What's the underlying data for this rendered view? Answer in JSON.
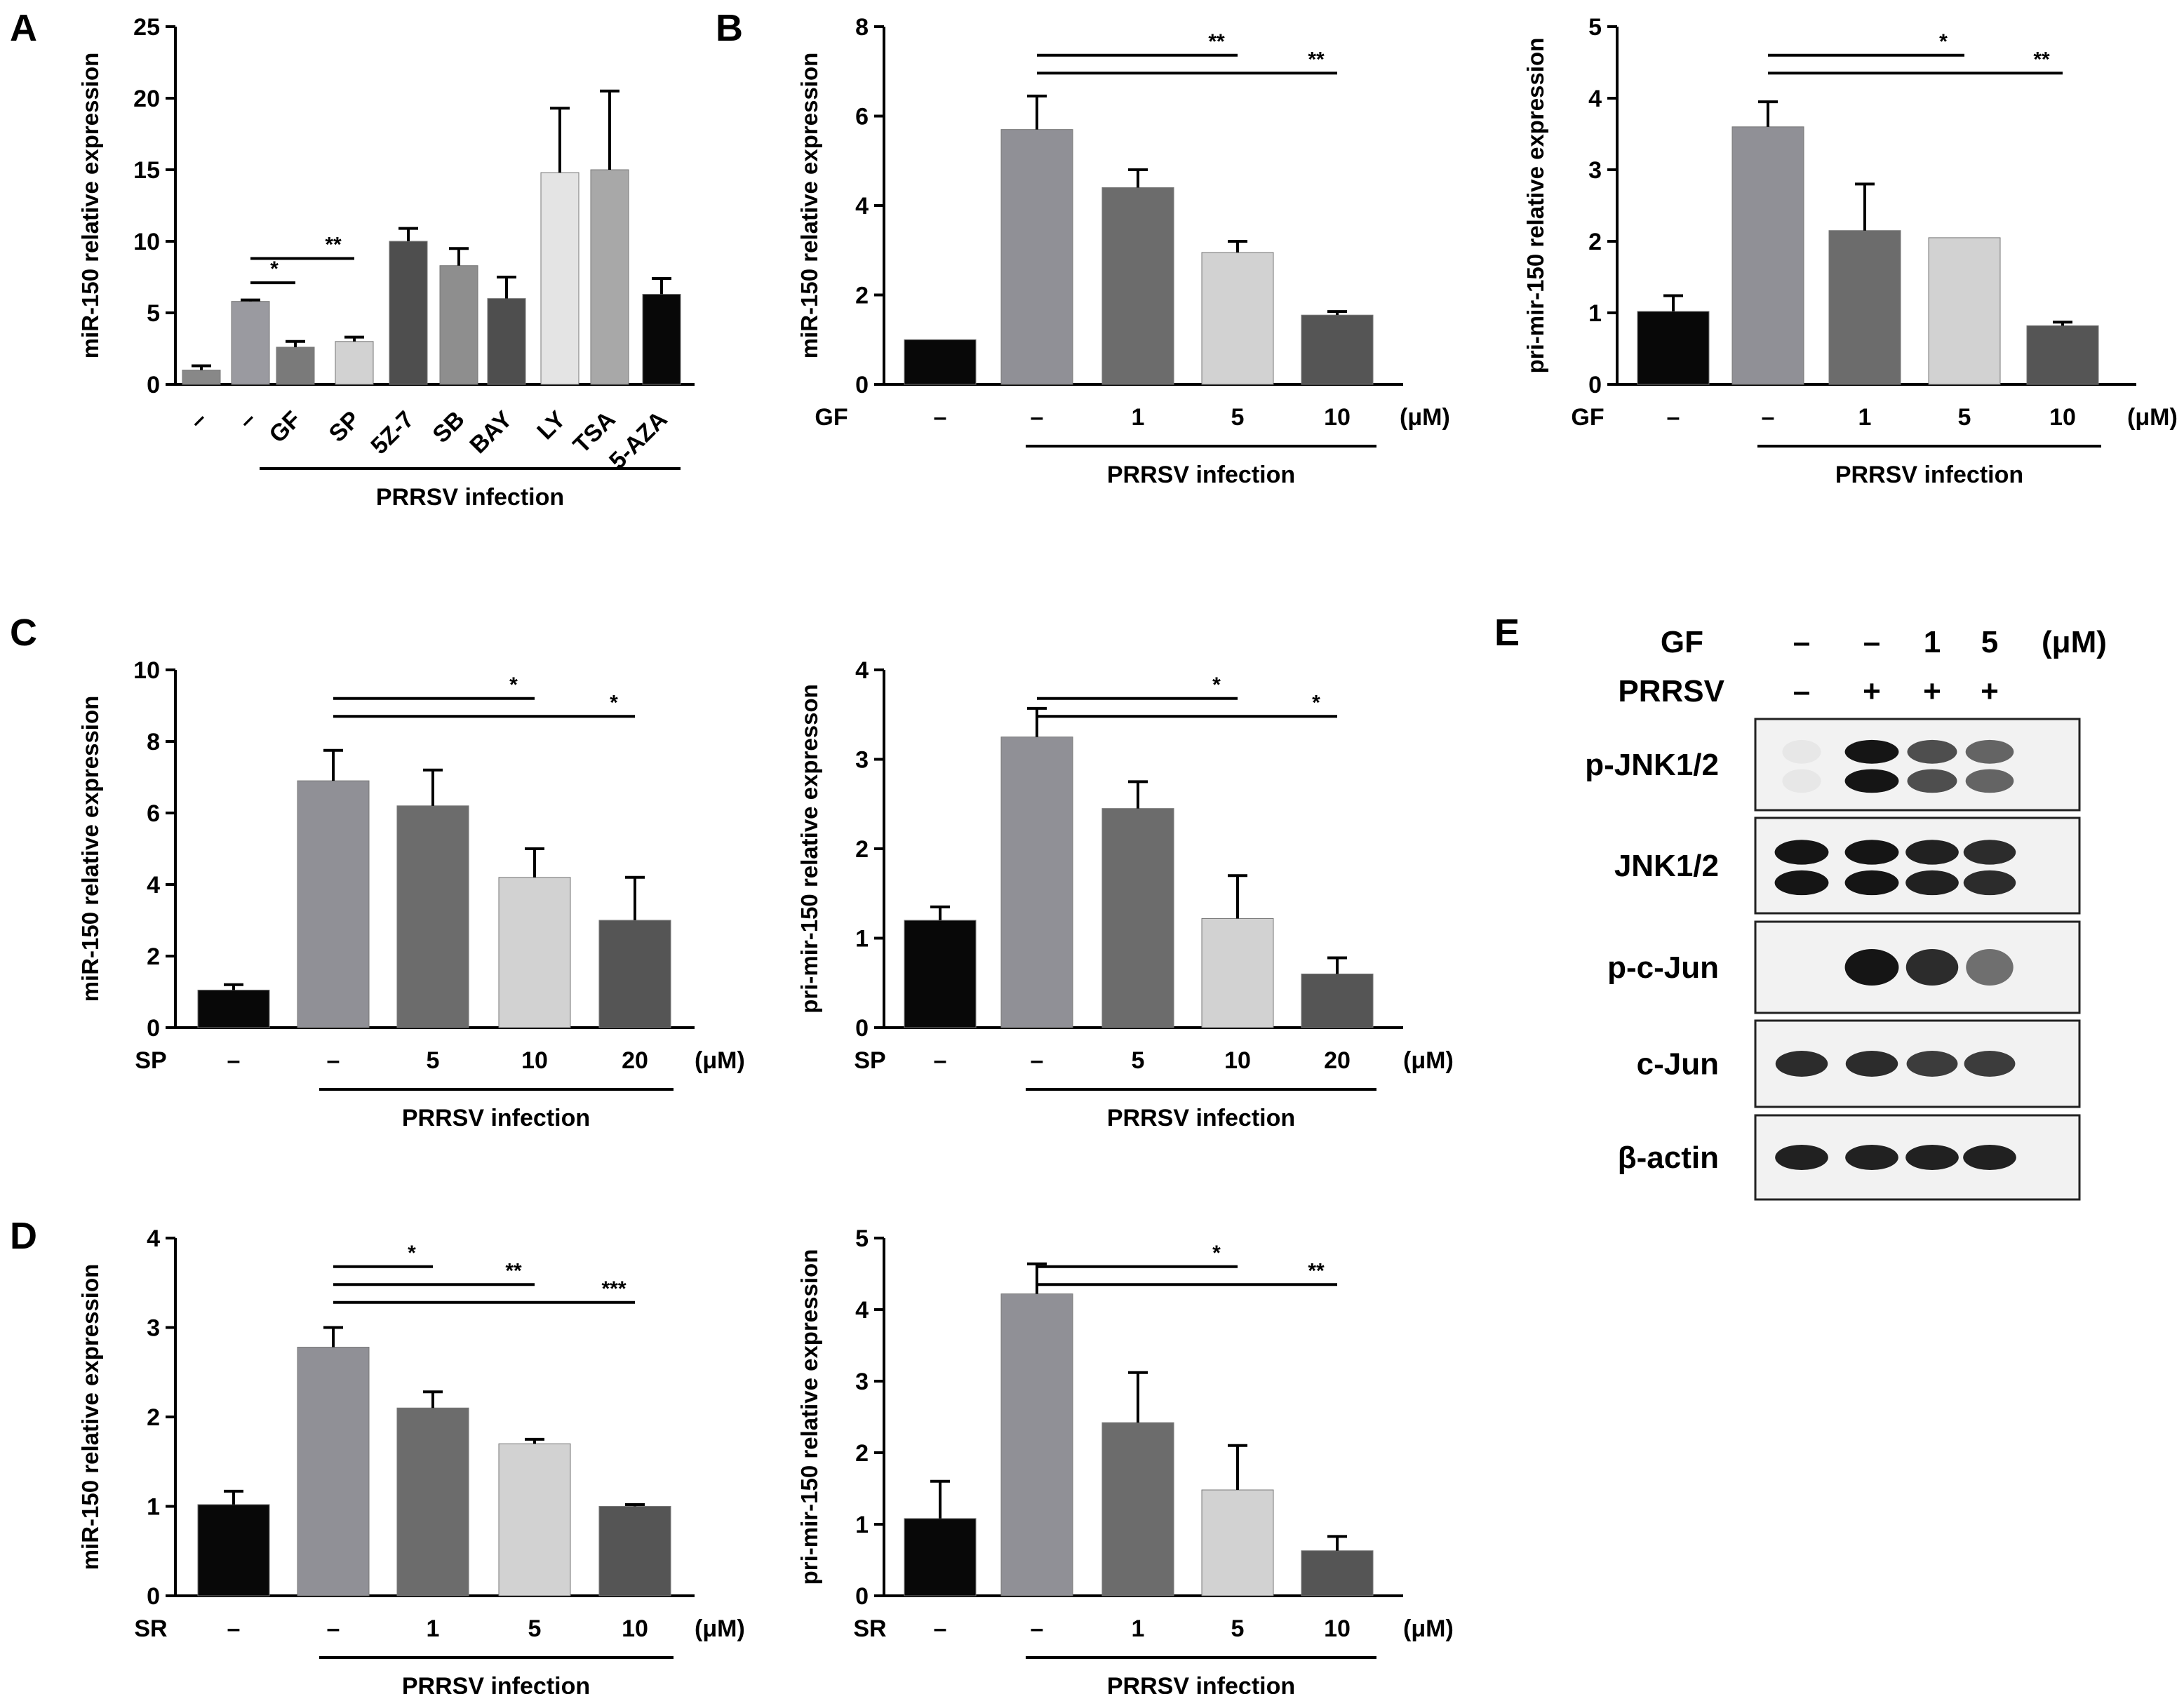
{
  "chart_data": [
    {
      "panel": "A",
      "type": "bar",
      "ylabel": "miR-150 relative expression",
      "ylim": [
        0,
        25
      ],
      "yticks": [
        0,
        5,
        10,
        15,
        20,
        25
      ],
      "categories": [
        "–",
        "–",
        "GF",
        "SP",
        "5Z-7",
        "SB",
        "BAY",
        "LY",
        "TSA",
        "5-AZA"
      ],
      "values": [
        1.0,
        5.8,
        2.6,
        3.0,
        10.0,
        8.3,
        6.0,
        14.8,
        15.0,
        6.3
      ],
      "errors": [
        0.3,
        0.1,
        0.4,
        0.3,
        0.9,
        1.2,
        1.5,
        4.5,
        5.5,
        1.1
      ],
      "colors": [
        "#888888",
        "#9a9aa0",
        "#7a7a7a",
        "#d2d2d2",
        "#4e4e4e",
        "#8e8e8e",
        "#4e4e4e",
        "#e4e4e4",
        "#a8a8a8",
        "#080808"
      ],
      "infection_label": "PRRSV infection",
      "comparisons": [
        {
          "from": 1,
          "to": 2,
          "label": "*"
        },
        {
          "from": 1,
          "to": 3,
          "label": "**"
        }
      ]
    },
    {
      "panel": "B",
      "type": "bar",
      "ylabel": "miR-150 relative expression",
      "ylim": [
        0,
        8
      ],
      "yticks": [
        0,
        2,
        4,
        6,
        8
      ],
      "treatment": "GF",
      "unit": "(μM)",
      "categories": [
        "–",
        "–",
        "1",
        "5",
        "10"
      ],
      "values": [
        1.0,
        5.7,
        4.4,
        2.95,
        1.55
      ],
      "errors": [
        0.0,
        0.75,
        0.4,
        0.25,
        0.08
      ],
      "colors": [
        "#080808",
        "#909096",
        "#6c6c6c",
        "#d2d2d2",
        "#555555"
      ],
      "infection_label": "PRRSV infection",
      "comparisons": [
        {
          "from": 1,
          "to": 3,
          "label": "**"
        },
        {
          "from": 1,
          "to": 4,
          "label": "**"
        }
      ]
    },
    {
      "panel": "B2",
      "type": "bar",
      "ylabel": "pri-mir-150 relative expression",
      "ylim": [
        0,
        5
      ],
      "yticks": [
        0,
        1,
        2,
        3,
        4,
        5
      ],
      "treatment": "GF",
      "unit": "(μM)",
      "categories": [
        "–",
        "–",
        "1",
        "5",
        "10"
      ],
      "values": [
        1.02,
        3.6,
        2.15,
        2.05,
        0.82
      ],
      "errors": [
        0.22,
        0.35,
        0.65,
        0.0,
        0.05
      ],
      "colors": [
        "#080808",
        "#909096",
        "#6c6c6c",
        "#d2d2d2",
        "#555555"
      ],
      "infection_label": "PRRSV infection",
      "comparisons": [
        {
          "from": 1,
          "to": 3,
          "label": "*"
        },
        {
          "from": 1,
          "to": 4,
          "label": "**"
        }
      ]
    },
    {
      "panel": "C",
      "type": "bar",
      "ylabel": "miR-150 relative expression",
      "ylim": [
        0,
        10
      ],
      "yticks": [
        0,
        2,
        4,
        6,
        8,
        10
      ],
      "treatment": "SP",
      "unit": "(μM)",
      "categories": [
        "–",
        "–",
        "5",
        "10",
        "20"
      ],
      "values": [
        1.05,
        6.9,
        6.2,
        4.2,
        3.0
      ],
      "errors": [
        0.15,
        0.85,
        1.0,
        0.8,
        1.2
      ],
      "colors": [
        "#080808",
        "#909096",
        "#6c6c6c",
        "#d2d2d2",
        "#555555"
      ],
      "infection_label": "PRRSV infection",
      "comparisons": [
        {
          "from": 1,
          "to": 3,
          "label": "*"
        },
        {
          "from": 1,
          "to": 4,
          "label": "*"
        }
      ]
    },
    {
      "panel": "C2",
      "type": "bar",
      "ylabel": "pri-mir-150 relative expresson",
      "ylim": [
        0,
        4
      ],
      "yticks": [
        0,
        1,
        2,
        3,
        4
      ],
      "treatment": "SP",
      "unit": "(μM)",
      "categories": [
        "–",
        "–",
        "5",
        "10",
        "20"
      ],
      "values": [
        1.2,
        3.25,
        2.45,
        1.22,
        0.6
      ],
      "errors": [
        0.15,
        0.32,
        0.3,
        0.48,
        0.18
      ],
      "colors": [
        "#080808",
        "#909096",
        "#6c6c6c",
        "#d2d2d2",
        "#555555"
      ],
      "infection_label": "PRRSV infection",
      "comparisons": [
        {
          "from": 1,
          "to": 3,
          "label": "*"
        },
        {
          "from": 1,
          "to": 4,
          "label": "*"
        }
      ]
    },
    {
      "panel": "D",
      "type": "bar",
      "ylabel": "miR-150 relative expression",
      "ylim": [
        0,
        4
      ],
      "yticks": [
        0,
        1,
        2,
        3,
        4
      ],
      "treatment": "SR",
      "unit": "(μM)",
      "categories": [
        "–",
        "–",
        "1",
        "5",
        "10"
      ],
      "values": [
        1.02,
        2.78,
        2.1,
        1.7,
        1.0
      ],
      "errors": [
        0.15,
        0.22,
        0.18,
        0.05,
        0.02
      ],
      "colors": [
        "#080808",
        "#909096",
        "#6c6c6c",
        "#d2d2d2",
        "#555555"
      ],
      "infection_label": "PRRSV infection",
      "comparisons": [
        {
          "from": 1,
          "to": 2,
          "label": "*"
        },
        {
          "from": 1,
          "to": 3,
          "label": "**"
        },
        {
          "from": 1,
          "to": 4,
          "label": "***"
        }
      ]
    },
    {
      "panel": "D2",
      "type": "bar",
      "ylabel": "pri-mir-150 relative expression",
      "ylim": [
        0,
        5
      ],
      "yticks": [
        0,
        1,
        2,
        3,
        4,
        5
      ],
      "treatment": "SR",
      "unit": "(μM)",
      "categories": [
        "–",
        "–",
        "1",
        "5",
        "10"
      ],
      "values": [
        1.08,
        4.22,
        2.42,
        1.48,
        0.63
      ],
      "errors": [
        0.52,
        0.42,
        0.7,
        0.62,
        0.2
      ],
      "colors": [
        "#080808",
        "#909096",
        "#6c6c6c",
        "#d2d2d2",
        "#555555"
      ],
      "infection_label": "PRRSV infection",
      "comparisons": [
        {
          "from": 1,
          "to": 3,
          "label": "*"
        },
        {
          "from": 1,
          "to": 4,
          "label": "**"
        }
      ]
    }
  ],
  "panel_letters": {
    "A": "A",
    "B": "B",
    "C": "C",
    "D": "D",
    "E": "E"
  },
  "western_blot": {
    "gf_label": "GF",
    "prrsv_label": "PRRSV",
    "gf_values": [
      "–",
      "–",
      "1",
      "5"
    ],
    "unit": "(μM)",
    "prrsv_values": [
      "–",
      "+",
      "+",
      "+"
    ],
    "bands": [
      {
        "label": "p-JNK1/2",
        "intensity": [
          0.02,
          0.95,
          0.7,
          0.6
        ]
      },
      {
        "label": "JNK1/2",
        "intensity": [
          0.95,
          0.95,
          0.9,
          0.85
        ]
      },
      {
        "label": "p-c-Jun",
        "intensity": [
          0.0,
          0.95,
          0.85,
          0.55
        ]
      },
      {
        "label": "c-Jun",
        "intensity": [
          0.85,
          0.85,
          0.78,
          0.78
        ]
      },
      {
        "label": "β-actin",
        "intensity": [
          0.9,
          0.9,
          0.9,
          0.9
        ]
      }
    ]
  }
}
